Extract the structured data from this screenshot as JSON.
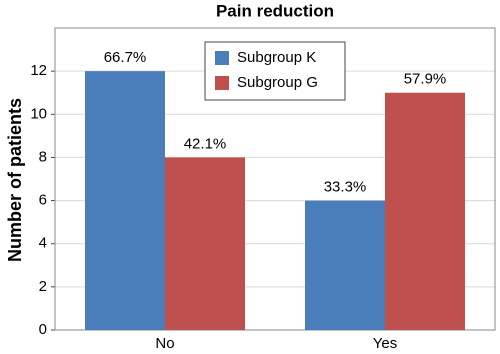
{
  "chart_data": {
    "type": "bar",
    "title": "Pain reduction",
    "y_label": "Number of patients",
    "categories": [
      "No",
      "Yes"
    ],
    "series": [
      {
        "name": "Subgroup K",
        "color": "#4a7ebb",
        "values": [
          12,
          6
        ],
        "percent_labels": [
          "66.7%",
          "33.3%"
        ]
      },
      {
        "name": "Subgroup G",
        "color": "#c0504d",
        "values": [
          8,
          11
        ],
        "percent_labels": [
          "42.1%",
          "57.9%"
        ]
      }
    ],
    "ylim": [
      0,
      14
    ],
    "yticks": [
      0,
      2,
      4,
      6,
      8,
      10,
      12
    ],
    "grid": true,
    "legend": "top"
  }
}
